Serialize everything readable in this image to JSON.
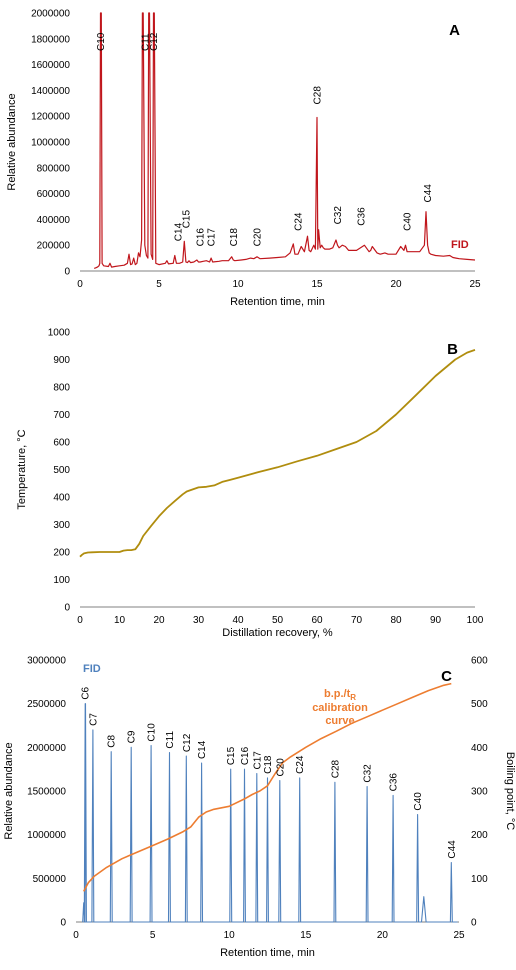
{
  "colors": {
    "panel_a": "#c0161c",
    "panel_b": "#b08d0e",
    "panel_c_series": "#4f81bd",
    "panel_c_curve": "#ed7d31",
    "axis": "#808080",
    "text": "#000000"
  },
  "chart_data": [
    {
      "panel": "A",
      "type": "line",
      "xlabel": "Retention time, min",
      "ylabel": "Relative abundance",
      "xlim": [
        0,
        25
      ],
      "ylim": [
        0,
        2000000
      ],
      "xticks": [
        "0",
        "5",
        "10",
        "15",
        "20",
        "25"
      ],
      "yticks": [
        "0",
        "200000",
        "400000",
        "600000",
        "800000",
        "1000000",
        "1200000",
        "1400000",
        "1600000",
        "1800000",
        "2000000"
      ],
      "series": [
        {
          "name": "FID",
          "x": [
            0.9,
            1.0,
            1.1,
            1.2,
            1.25,
            1.3,
            1.35,
            1.4,
            1.5,
            1.8,
            1.9,
            2.0,
            2.2,
            2.5,
            2.8,
            3.0,
            3.1,
            3.2,
            3.3,
            3.4,
            3.5,
            3.6,
            3.7,
            3.8,
            3.9,
            3.95,
            4.0,
            4.1,
            4.2,
            4.3,
            4.35,
            4.4,
            4.5,
            4.6,
            4.65,
            4.7,
            4.8,
            5.0,
            5.4,
            5.5,
            5.6,
            5.9,
            6.0,
            6.1,
            6.2,
            6.3,
            6.5,
            6.6,
            6.7,
            6.8,
            6.9,
            7.0,
            7.2,
            7.4,
            7.5,
            7.6,
            7.8,
            8.0,
            8.2,
            8.3,
            8.4,
            8.8,
            9.0,
            9.4,
            9.6,
            9.7,
            9.8,
            10.2,
            10.5,
            10.8,
            11.0,
            11.2,
            11.4,
            12.0,
            12.5,
            13.0,
            13.3,
            13.5,
            13.6,
            13.8,
            14.0,
            14.2,
            14.4,
            14.5,
            14.6,
            14.8,
            14.9,
            15.0,
            15.05,
            15.1,
            15.2,
            15.3,
            15.4,
            15.5,
            15.8,
            16.0,
            16.2,
            16.3,
            16.4,
            16.6,
            16.8,
            17.0,
            17.5,
            18.0,
            18.3,
            18.4,
            18.5,
            18.8,
            19.0,
            19.3,
            19.5,
            20.0,
            20.3,
            20.5,
            20.6,
            20.7,
            20.8,
            21.0,
            21.3,
            21.5,
            21.8,
            21.9,
            22.0,
            22.1,
            22.2,
            22.5,
            23.0,
            23.4,
            23.6,
            23.8,
            24.0,
            24.5,
            25.0
          ],
          "y": [
            20000,
            25000,
            30000,
            40000,
            60000,
            2000000,
            2000000,
            60000,
            40000,
            35000,
            60000,
            30000,
            35000,
            40000,
            45000,
            60000,
            130000,
            50000,
            55000,
            100000,
            50000,
            60000,
            140000,
            110000,
            240000,
            2000000,
            2000000,
            200000,
            120000,
            100000,
            2000000,
            2000000,
            130000,
            90000,
            2000000,
            2000000,
            60000,
            50000,
            60000,
            80000,
            55000,
            60000,
            120000,
            60000,
            60000,
            60000,
            70000,
            230000,
            70000,
            65000,
            80000,
            65000,
            70000,
            85000,
            70000,
            70000,
            75000,
            80000,
            70000,
            100000,
            70000,
            75000,
            80000,
            80000,
            110000,
            85000,
            80000,
            85000,
            90000,
            100000,
            95000,
            110000,
            95000,
            100000,
            105000,
            110000,
            140000,
            210000,
            130000,
            130000,
            190000,
            150000,
            270000,
            160000,
            150000,
            200000,
            170000,
            1190000,
            170000,
            320000,
            180000,
            200000,
            180000,
            170000,
            170000,
            180000,
            240000,
            200000,
            180000,
            200000,
            190000,
            160000,
            160000,
            200000,
            150000,
            160000,
            190000,
            140000,
            130000,
            140000,
            130000,
            130000,
            190000,
            160000,
            200000,
            150000,
            150000,
            150000,
            150000,
            150000,
            200000,
            460000,
            200000,
            140000,
            130000,
            120000,
            115000,
            120000,
            105000,
            100000,
            95000,
            90000,
            85000
          ]
        }
      ],
      "annotations": [
        "C10",
        "C11",
        "C12",
        "C14",
        "C15",
        "C16",
        "C17",
        "C18",
        "C20",
        "C24",
        "C28",
        "C32",
        "C36",
        "C40",
        "C44"
      ],
      "annotation_x": [
        1.3,
        4.1,
        4.65,
        6.2,
        6.7,
        7.6,
        8.3,
        9.7,
        11.2,
        13.8,
        15.0,
        16.3,
        17.8,
        20.7,
        22.0
      ],
      "annotation_y": [
        2000000,
        2000000,
        2000000,
        200000,
        300000,
        160000,
        160000,
        160000,
        160000,
        280000,
        1260000,
        330000,
        320000,
        280000,
        500000
      ],
      "panel_label": "A"
    },
    {
      "panel": "B",
      "type": "line",
      "xlabel": "Distillation recovery, %",
      "ylabel": "Temperature, °C",
      "xlim": [
        0,
        100
      ],
      "ylim": [
        0,
        1000
      ],
      "xticks": [
        "0",
        "10",
        "20",
        "30",
        "40",
        "50",
        "60",
        "70",
        "80",
        "90",
        "100"
      ],
      "yticks": [
        "0",
        "100",
        "200",
        "300",
        "400",
        "500",
        "600",
        "700",
        "800",
        "900",
        "1000"
      ],
      "series": [
        {
          "name": "",
          "x": [
            0,
            0.5,
            1,
            2,
            3,
            5,
            8,
            10,
            11,
            12,
            13,
            14,
            15,
            16,
            18,
            20,
            22,
            24,
            26,
            27,
            28,
            30,
            32,
            34,
            36,
            38,
            40,
            45,
            50,
            55,
            60,
            65,
            70,
            75,
            80,
            85,
            90,
            95,
            98,
            100
          ],
          "y": [
            183,
            190,
            195,
            198,
            199,
            200,
            200,
            200,
            205,
            207,
            207,
            210,
            230,
            258,
            295,
            330,
            360,
            385,
            410,
            420,
            425,
            435,
            437,
            442,
            455,
            462,
            470,
            490,
            508,
            530,
            550,
            575,
            600,
            640,
            700,
            770,
            840,
            900,
            925,
            935
          ]
        }
      ],
      "panel_label": "B"
    },
    {
      "panel": "C",
      "type": "line",
      "xlabel": "Retention time, min",
      "ylabel": "Relative abundance",
      "y2label": "Boiling point, °C",
      "xlim": [
        0,
        25
      ],
      "ylim": [
        0,
        3000000
      ],
      "y2lim": [
        0,
        600
      ],
      "xticks": [
        "0",
        "5",
        "10",
        "15",
        "20",
        "25"
      ],
      "yticks": [
        "0",
        "500000",
        "1000000",
        "1500000",
        "2000000",
        "2500000",
        "3000000"
      ],
      "y2ticks": [
        "0",
        "100",
        "200",
        "300",
        "400",
        "500",
        "600"
      ],
      "series": [
        {
          "name": "FID",
          "peaks_x": [
            0.6,
            1.1,
            2.3,
            3.6,
            4.9,
            6.1,
            7.2,
            8.2,
            10.1,
            11.0,
            11.8,
            12.5,
            13.3,
            14.6,
            16.9,
            19.0,
            20.7,
            22.3,
            24.5
          ],
          "peaks_y": [
            2500000,
            2200000,
            1950000,
            2000000,
            2020000,
            1940000,
            1900000,
            1820000,
            1750000,
            1750000,
            1700000,
            1650000,
            1620000,
            1650000,
            1600000,
            1550000,
            1450000,
            1230000,
            680000
          ],
          "extra_x": [
            0.5,
            0.62,
            22.7
          ],
          "extra_y": [
            220000,
            2500000,
            290000
          ]
        },
        {
          "name": "b.p./tR calibration curve",
          "axis": "y2",
          "x": [
            0.5,
            0.8,
            1.2,
            2.0,
            3.0,
            4.0,
            5.0,
            6.0,
            7.0,
            7.5,
            8.0,
            8.5,
            9.0,
            10.0,
            11.0,
            11.5,
            12.0,
            12.5,
            13.0,
            13.5,
            14.0,
            15.0,
            16.0,
            17.0,
            18.0,
            19.0,
            20.0,
            21.0,
            22.0,
            23.0,
            24.0,
            24.5
          ],
          "y": [
            70,
            90,
            105,
            125,
            145,
            160,
            175,
            190,
            207,
            218,
            240,
            252,
            258,
            265,
            282,
            292,
            300,
            312,
            340,
            365,
            378,
            400,
            420,
            437,
            455,
            470,
            485,
            500,
            515,
            530,
            542,
            546
          ]
        }
      ],
      "peak_labels": [
        "C6",
        "C7",
        "C8",
        "C9",
        "C10",
        "C11",
        "C12",
        "C14",
        "C15",
        "C16",
        "C17",
        "C18",
        "C20",
        "C24",
        "C28",
        "C32",
        "C36",
        "C40",
        "C44"
      ],
      "fid_label": "FID",
      "curve_label_line1": "b.p./t",
      "curve_label_sub": "R",
      "curve_label_line2": "calibration",
      "curve_label_line3": "curve",
      "panel_label": "C"
    }
  ]
}
